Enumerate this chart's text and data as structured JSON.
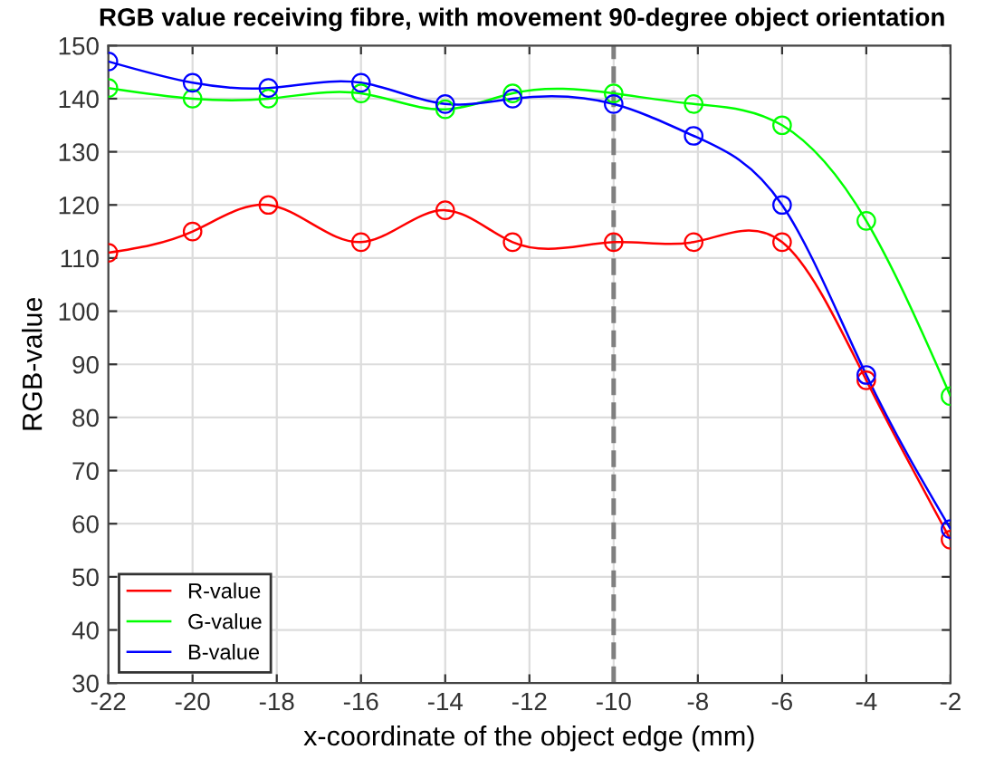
{
  "chart_data": {
    "type": "line",
    "title": "RGB value receiving fibre, with movement 90-degree object orientation",
    "xlabel": "x-coordinate of the object edge (mm)",
    "ylabel": "RGB-value",
    "x": [
      -22,
      -20,
      -18.2,
      -16,
      -14,
      -12.4,
      -10,
      -8.1,
      -6,
      -4,
      -2
    ],
    "series": [
      {
        "name": "R-value",
        "color": "#ff0000",
        "values": [
          111,
          115,
          120,
          113,
          119,
          113,
          113,
          113,
          113,
          87,
          57
        ]
      },
      {
        "name": "G-value",
        "color": "#00ff00",
        "values": [
          142,
          140,
          140,
          141,
          138,
          141,
          141,
          139,
          135,
          117,
          84
        ]
      },
      {
        "name": "B-value",
        "color": "#0000ff",
        "values": [
          147,
          143,
          142,
          143,
          139,
          140,
          139,
          133,
          120,
          88,
          59
        ]
      }
    ],
    "xlim": [
      -22,
      -2
    ],
    "xticks": [
      -22,
      -20,
      -18,
      -16,
      -14,
      -12,
      -10,
      -8,
      -6,
      -4,
      -2
    ],
    "ylim": [
      30,
      150
    ],
    "yticks": [
      30,
      40,
      50,
      60,
      70,
      80,
      90,
      100,
      110,
      120,
      130,
      140,
      150
    ],
    "ref_lines": [
      {
        "axis": "x",
        "value": -10,
        "color": "#808080",
        "line_style": "dashed"
      }
    ],
    "grid": true,
    "legend": "bottom left",
    "marker": "circle",
    "line_style": "solid"
  }
}
